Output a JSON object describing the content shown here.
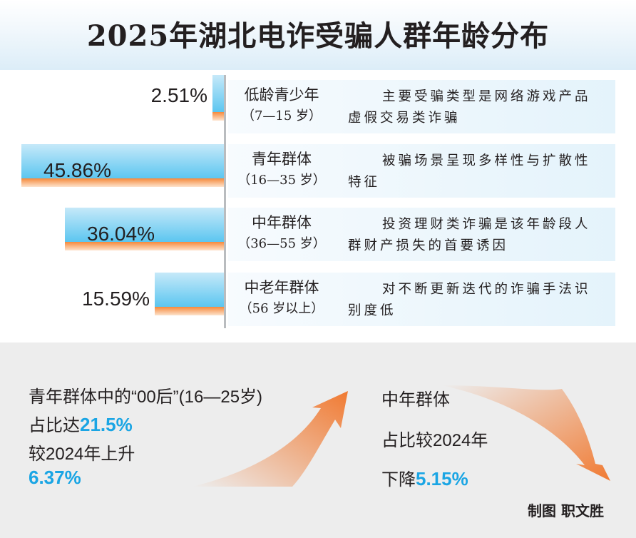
{
  "title": "2025年湖北电诈受骗人群年龄分布",
  "colors": {
    "bar_blue": "#5cc6f0",
    "bar_orange": "#f5893b",
    "highlight": "#1aa5e4",
    "arrow": "#f07a32"
  },
  "chart_data": {
    "type": "bar",
    "orientation": "horizontal",
    "title": "2025年湖北电诈受骗人群年龄分布",
    "categories": [
      "低龄青少年（7—15岁）",
      "青年群体（16—35岁）",
      "中年群体（36—55岁）",
      "中老年群体（56岁以上）"
    ],
    "values": [
      2.51,
      45.86,
      36.04,
      15.59
    ],
    "value_labels": [
      "2.51%",
      "45.86%",
      "36.04%",
      "15.59%"
    ],
    "unit": "%",
    "xlim": [
      0,
      50
    ]
  },
  "groups": [
    {
      "name": "低龄青少年",
      "range": "（7—15 岁）",
      "desc": "主要受骗类型是网络游戏产品虚假交易类诈骗"
    },
    {
      "name": "青年群体",
      "range": "（16—35 岁）",
      "desc": "被骗场景呈现多样性与扩散性特征"
    },
    {
      "name": "中年群体",
      "range": "（36—55 岁）",
      "desc": "投资理财类诈骗是该年龄段人群财产损失的首要诱因"
    },
    {
      "name": "中老年群体",
      "range": "（56 岁以上）",
      "desc": "对不断更新迭代的诈骗手法识别度低"
    }
  ],
  "callout_left": {
    "line1": "青年群体中的“00后”(16—25岁)",
    "line2_prefix": "占比达",
    "line2_value": "21.5%",
    "line3": "较2024年上升",
    "line4_value": "6.37%"
  },
  "callout_right": {
    "line1": "中年群体",
    "line2": "占比较2024年",
    "line3_prefix": "下降",
    "line3_value": "5.15%"
  },
  "credit": "制图  职文胜"
}
